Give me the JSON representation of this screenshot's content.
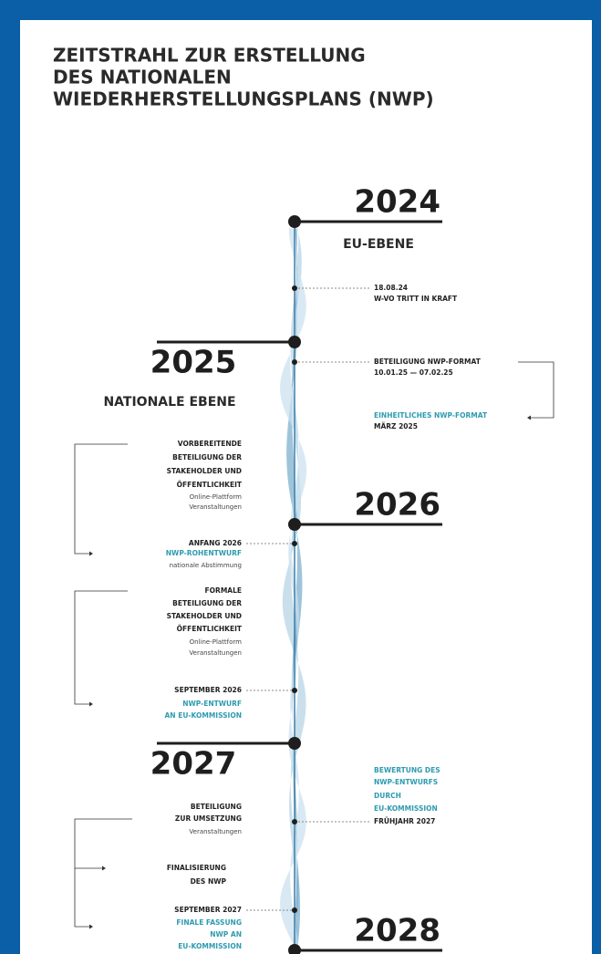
{
  "title": [
    "ZEITSTRAHL ZUR ERSTELLUNG",
    "DES NATIONALEN",
    "WIEDERHERSTELLUNGSPLANS (NWP)"
  ],
  "years": [
    "2024",
    "2025",
    "2026",
    "2027",
    "2028"
  ],
  "levels": {
    "eu": "EU-EBENE",
    "national": "NATIONALE EBENE"
  },
  "events": [
    {
      "lines": [
        "18.08.24",
        "W-VO TRITT IN KRAFT"
      ]
    },
    {
      "lines": [
        "BETEILIGUNG NWP-FORMAT",
        "10.01.25 — 07.02.25"
      ]
    },
    {
      "lines": [
        "EINHEITLICHES NWP-FORMAT",
        "MÄRZ 2025"
      ]
    },
    {
      "lines": [
        "VORBEREITENDE",
        "BETEILIGUNG DER",
        "STAKEHOLDER UND",
        "ÖFFENTLICHKEIT"
      ],
      "notes": [
        "Online-Plattform",
        "Veranstaltungen"
      ]
    },
    {
      "lines": [
        "ANFANG 2026",
        "NWP-ROHENTWURF"
      ],
      "notes": [
        "nationale Abstimmung"
      ]
    },
    {
      "lines": [
        "FORMALE",
        "BETEILIGUNG DER",
        "STAKEHOLDER UND",
        "ÖFFENTLICHKEIT"
      ],
      "notes": [
        "Online-Plattform",
        "Veranstaltungen"
      ]
    },
    {
      "lines": [
        "SEPTEMBER 2026",
        "NWP-ENTWURF",
        "AN EU-KOMMISSION"
      ]
    },
    {
      "lines": [
        "BEWERTUNG DES",
        "NWP-ENTWURFS",
        "DURCH",
        "EU-KOMMISSION",
        "FRÜHJAHR 2027"
      ]
    },
    {
      "lines": [
        "BETEILIGUNG",
        "ZUR UMSETZUNG"
      ],
      "notes": [
        "Veranstaltungen"
      ]
    },
    {
      "lines": [
        "FINALISIERUNG",
        "DES NWP"
      ]
    },
    {
      "lines": [
        "SEPTEMBER 2027",
        "FINALE FASSUNG",
        "NWP AN",
        "EU-KOMMISSION"
      ]
    }
  ]
}
